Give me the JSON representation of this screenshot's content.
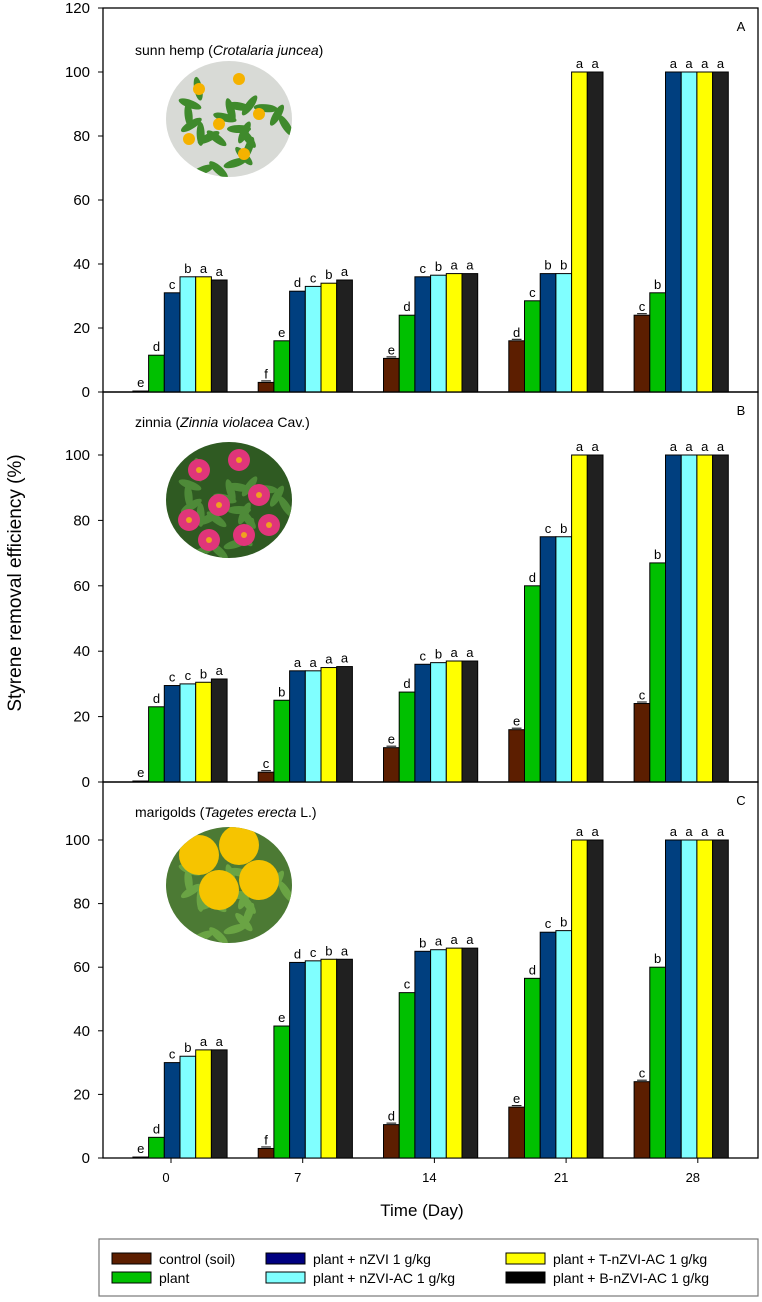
{
  "chart_data": {
    "type": "bar",
    "ylabel": "Styrene removal efficiency (%)",
    "xlabel": "Time (Day)",
    "categories": [
      "0",
      "7",
      "14",
      "21",
      "28"
    ],
    "yticks": [
      "0",
      "20",
      "40",
      "60",
      "80",
      "100",
      "120"
    ],
    "ylim": [
      0,
      120
    ],
    "grid": false,
    "legend_position": "bottom",
    "series_meta": [
      {
        "name": "control (soil)",
        "color": "#5c1e00"
      },
      {
        "name": "plant",
        "color": "#00c000"
      },
      {
        "name": "plant + nZVI 1 g/kg",
        "color": "#003f7f"
      },
      {
        "name": "plant + nZVI-AC 1 g/kg",
        "color": "#80ffff"
      },
      {
        "name": "plant + T-nZVI-AC 1 g/kg",
        "color": "#ffff00"
      },
      {
        "name": "plant + B-nZVI-AC 1 g/kg",
        "color": "#202020"
      }
    ],
    "legend_swatch_colors": [
      "#5c1e00",
      "#00c000",
      "#000080",
      "#80ffff",
      "#ffff00",
      "#000000"
    ],
    "panels": [
      {
        "id": "A",
        "title_common": "sunn hemp (",
        "title_italic": "Crotalaria juncea",
        "title_end": ")",
        "photo": "sunn-hemp",
        "values": [
          [
            0.3,
            3,
            10.5,
            16,
            24
          ],
          [
            11.5,
            16,
            24,
            28.5,
            31
          ],
          [
            31,
            31.5,
            36,
            37,
            100
          ],
          [
            36,
            33,
            36.5,
            37,
            100
          ],
          [
            36,
            34,
            37,
            100,
            100
          ],
          [
            35,
            35,
            37,
            100,
            100
          ]
        ],
        "letters": [
          [
            "e",
            "f",
            "e",
            "d",
            "c"
          ],
          [
            "d",
            "e",
            "d",
            "c",
            "b"
          ],
          [
            "c",
            "d",
            "c",
            "b",
            "a"
          ],
          [
            "b",
            "c",
            "b",
            "b",
            "a"
          ],
          [
            "a",
            "b",
            "a",
            "a",
            "a"
          ],
          [
            "a",
            "a",
            "a",
            "a",
            "a"
          ]
        ]
      },
      {
        "id": "B",
        "title_common": "zinnia (",
        "title_italic": "Zinnia violacea",
        "title_end": " Cav.)",
        "photo": "zinnia",
        "values": [
          [
            0.3,
            3,
            10.5,
            16,
            24
          ],
          [
            23,
            25,
            27.5,
            60,
            67
          ],
          [
            29.5,
            34,
            36,
            75,
            100
          ],
          [
            30,
            34,
            36.5,
            75,
            100
          ],
          [
            30.5,
            35,
            37,
            100,
            100
          ],
          [
            31.5,
            35.3,
            37,
            100,
            100
          ]
        ],
        "letters": [
          [
            "e",
            "c",
            "e",
            "e",
            "c"
          ],
          [
            "d",
            "b",
            "d",
            "d",
            "b"
          ],
          [
            "c",
            "a",
            "c",
            "c",
            "a"
          ],
          [
            "c",
            "a",
            "b",
            "b",
            "a"
          ],
          [
            "b",
            "a",
            "a",
            "a",
            "a"
          ],
          [
            "a",
            "a",
            "a",
            "a",
            "a"
          ]
        ]
      },
      {
        "id": "C",
        "title_common": "marigolds (",
        "title_italic": "Tagetes erecta",
        "title_end": " L.)",
        "photo": "marigold",
        "values": [
          [
            0.3,
            3,
            10.5,
            16,
            24
          ],
          [
            6.5,
            41.5,
            52,
            56.5,
            60
          ],
          [
            30,
            61.5,
            65,
            71,
            100
          ],
          [
            32,
            62,
            65.5,
            71.5,
            100
          ],
          [
            34,
            62.5,
            66,
            100,
            100
          ],
          [
            34,
            62.5,
            66,
            100,
            100
          ]
        ],
        "letters": [
          [
            "e",
            "f",
            "d",
            "e",
            "c"
          ],
          [
            "d",
            "e",
            "c",
            "d",
            "b"
          ],
          [
            "c",
            "d",
            "b",
            "c",
            "a"
          ],
          [
            "b",
            "c",
            "a",
            "b",
            "a"
          ],
          [
            "a",
            "b",
            "a",
            "a",
            "a"
          ],
          [
            "a",
            "a",
            "a",
            "a",
            "a"
          ]
        ]
      }
    ]
  }
}
